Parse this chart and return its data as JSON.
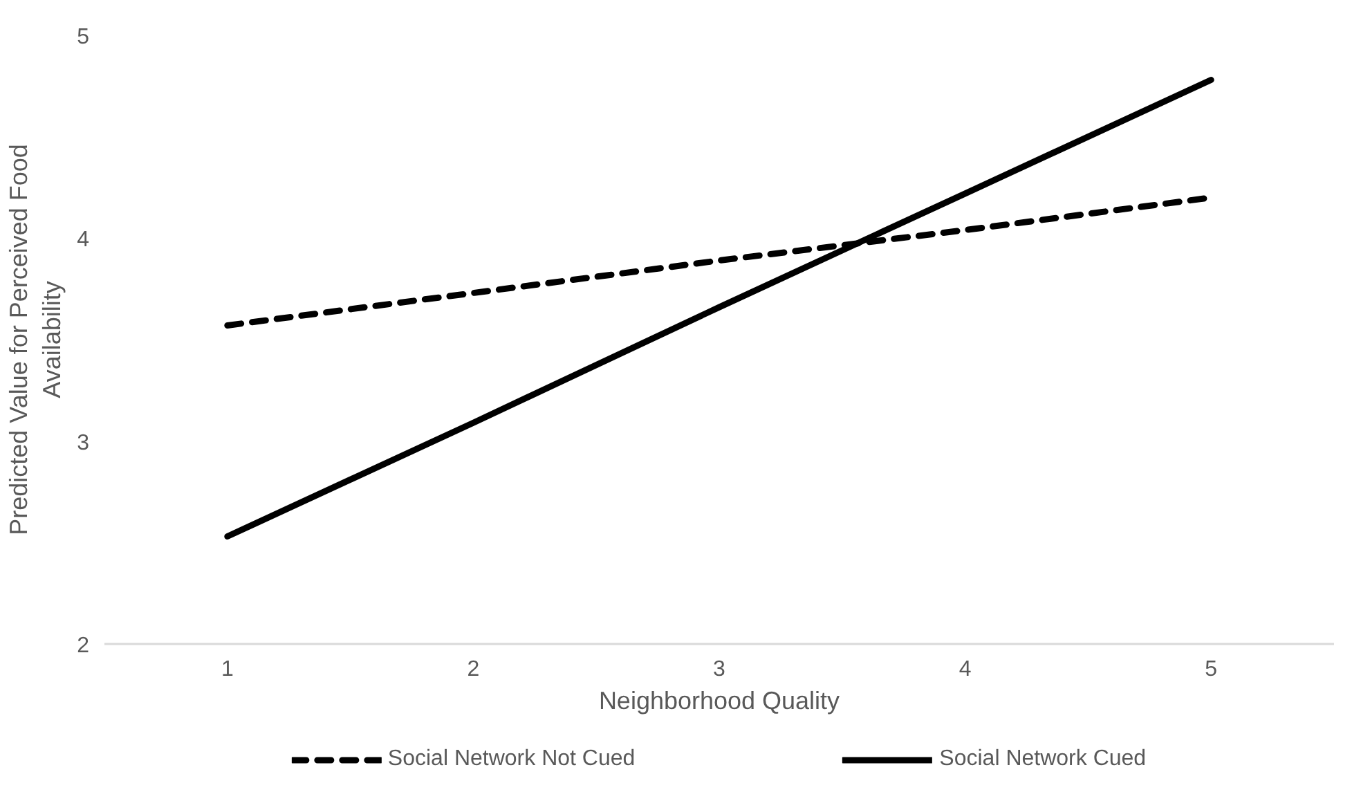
{
  "chart_data": {
    "type": "line",
    "xlabel": "Neighborhood Quality",
    "ylabel": "Predicted Value for Perceived Food Availability",
    "categories": [
      "1",
      "2",
      "3",
      "4",
      "5"
    ],
    "series": [
      {
        "name": "Social Network Not Cued",
        "color": "#000000",
        "line_style": "dashed",
        "values": [
          3.57,
          3.73,
          3.89,
          4.04,
          4.2
        ]
      },
      {
        "name": "Social Network Cued",
        "color": "#000000",
        "line_style": "solid",
        "values": [
          2.53,
          3.09,
          3.66,
          4.22,
          4.78
        ]
      }
    ],
    "ylim": [
      2,
      5
    ],
    "yticks": [
      2,
      3,
      4,
      5
    ],
    "grid": false,
    "legend": "bottom",
    "marker": "none"
  }
}
